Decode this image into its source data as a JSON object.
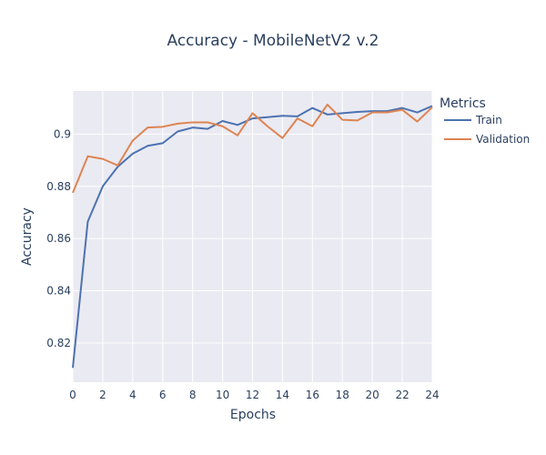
{
  "chart_data": {
    "type": "line",
    "title": "Accuracy - MobileNetV2 v.2",
    "xlabel": "Epochs",
    "ylabel": "Accuracy",
    "xlim": [
      0,
      24
    ],
    "ylim": [
      0.805,
      0.9165
    ],
    "xticks": [
      0,
      2,
      4,
      6,
      8,
      10,
      12,
      14,
      16,
      18,
      20,
      22,
      24
    ],
    "yticks": [
      0.82,
      0.84,
      0.86,
      0.88,
      0.9
    ],
    "ytick_labels": [
      "0.82",
      "0.84",
      "0.86",
      "0.88",
      "0.9"
    ],
    "grid": true,
    "legend_title": "Metrics",
    "legend_position": "top-right-outside",
    "x": [
      0,
      1,
      2,
      3,
      4,
      5,
      6,
      7,
      8,
      9,
      10,
      11,
      12,
      13,
      14,
      15,
      16,
      17,
      18,
      19,
      20,
      21,
      22,
      23,
      24
    ],
    "series": [
      {
        "name": "Train",
        "color": "#4c72b0",
        "values": [
          0.8105,
          0.8665,
          0.88,
          0.8875,
          0.8925,
          0.8955,
          0.8965,
          0.901,
          0.9025,
          0.902,
          0.905,
          0.9035,
          0.906,
          0.9065,
          0.907,
          0.9068,
          0.91,
          0.9075,
          0.908,
          0.9085,
          0.9088,
          0.9088,
          0.91,
          0.9083,
          0.9108
        ]
      },
      {
        "name": "Validation",
        "color": "#dd8452",
        "values": [
          0.8775,
          0.8915,
          0.8905,
          0.888,
          0.8975,
          0.9025,
          0.9028,
          0.904,
          0.9045,
          0.9045,
          0.903,
          0.8995,
          0.908,
          0.903,
          0.8985,
          0.906,
          0.903,
          0.9113,
          0.9055,
          0.9052,
          0.9083,
          0.9083,
          0.9093,
          0.9048,
          0.9103
        ]
      }
    ]
  }
}
